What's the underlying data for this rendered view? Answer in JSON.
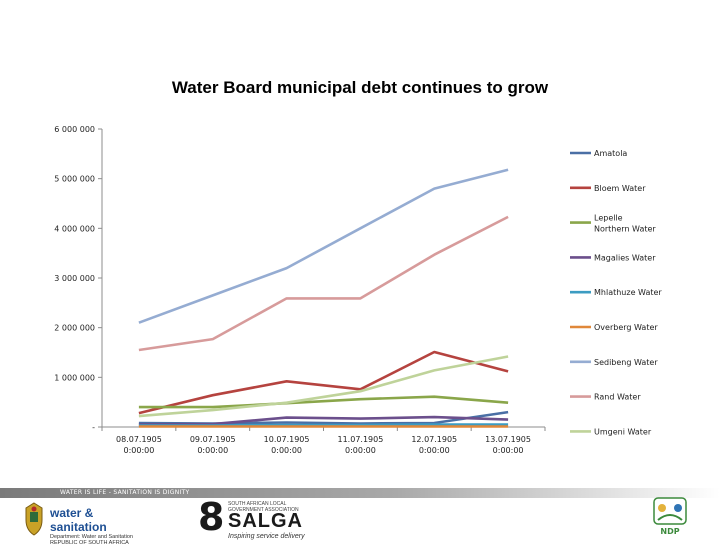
{
  "chart_data": {
    "type": "line",
    "title": "Water Board municipal debt continues to grow",
    "categories": [
      "08.07.1905\n0:00:00",
      "09.07.1905\n0:00:00",
      "10.07.1905\n0:00:00",
      "11.07.1905\n0:00:00",
      "12.07.1905\n0:00:00",
      "13.07.1905\n0:00:00"
    ],
    "y_ticks": [
      "6 000 000",
      "5 000 000",
      "4 000 000",
      "3 000 000",
      "2 000 000",
      "1 000 000",
      "-"
    ],
    "ylim": [
      0,
      6000000
    ],
    "grid": false,
    "legend_position": "right",
    "series": [
      {
        "name": "Amatola",
        "color": "#4a6fa5",
        "values": [
          80000,
          70000,
          90000,
          70000,
          80000,
          300000
        ]
      },
      {
        "name": "Bloem Water",
        "color": "#b5433f",
        "values": [
          280000,
          640000,
          920000,
          760000,
          1510000,
          1120000
        ]
      },
      {
        "name": "Lepelle Northern Water",
        "color": "#8aa64a",
        "values": [
          400000,
          400000,
          480000,
          560000,
          610000,
          490000
        ]
      },
      {
        "name": "Magalies Water",
        "color": "#6b4f8c",
        "values": [
          50000,
          60000,
          190000,
          170000,
          200000,
          150000
        ]
      },
      {
        "name": "Mhlathuze Water",
        "color": "#3c9cc2",
        "values": [
          30000,
          30000,
          40000,
          40000,
          50000,
          50000
        ]
      },
      {
        "name": "Overberg Water",
        "color": "#e0883a",
        "values": [
          10000,
          10000,
          10000,
          10000,
          10000,
          10000
        ]
      },
      {
        "name": "Sedibeng Water",
        "color": "#95acd2",
        "values": [
          2100000,
          2650000,
          3200000,
          4000000,
          4800000,
          5180000
        ]
      },
      {
        "name": "Rand Water",
        "color": "#d79b9b",
        "values": [
          1550000,
          1770000,
          2590000,
          2590000,
          3470000,
          4230000
        ]
      },
      {
        "name": "Umgeni Water",
        "color": "#bfd39a",
        "values": [
          220000,
          340000,
          490000,
          720000,
          1140000,
          1420000
        ]
      }
    ]
  },
  "footer": {
    "band_text": "WATER IS LIFE - SANITATION IS DIGNITY",
    "dws_title": "water & sanitation",
    "dws_sub": "Department: Water and Sanitation REPUBLIC OF SOUTH AFRICA",
    "salga_eight": "8",
    "salga_small": "SOUTH AFRICAN LOCAL GOVERNMENT ASSOCIATION",
    "salga_word": "SALGA",
    "salga_tag": "Inspiring service delivery",
    "ndp_text": "NDP"
  },
  "colors": {
    "axis": "#8c8c8c",
    "dws_blue": "#1e4f93",
    "ndp_green": "#3c8a3c"
  }
}
